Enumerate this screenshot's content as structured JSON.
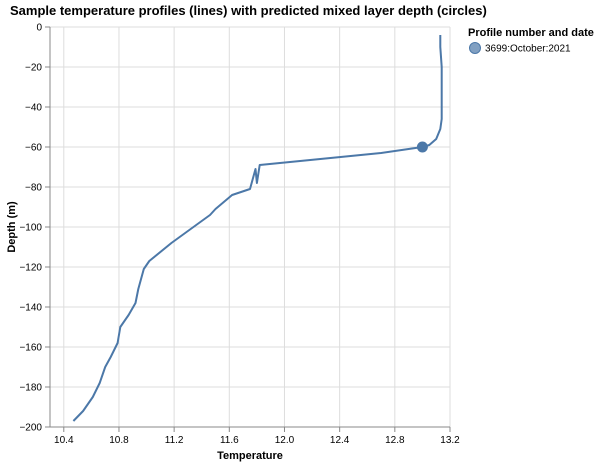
{
  "chart_data": {
    "type": "line",
    "title": "Sample temperature profiles (lines) with predicted mixed layer depth (circles)",
    "xlabel": "Temperature",
    "ylabel": "Depth (m)",
    "xlim": [
      10.3,
      13.2
    ],
    "ylim": [
      -200,
      0
    ],
    "x_ticks": [
      10.4,
      10.8,
      11.2,
      11.6,
      12.0,
      12.4,
      12.8,
      13.2
    ],
    "x_tick_labels": [
      "10.4",
      "10.8",
      "11.2",
      "11.6",
      "12.0",
      "12.4",
      "12.8",
      "13.2"
    ],
    "y_ticks": [
      0,
      -20,
      -40,
      -60,
      -80,
      -100,
      -120,
      -140,
      -160,
      -180,
      -200
    ],
    "y_tick_labels": [
      "0",
      "−20",
      "−40",
      "−60",
      "−80",
      "−100",
      "−120",
      "−140",
      "−160",
      "−180",
      "−200"
    ],
    "grid": true,
    "legend": {
      "title": "Profile number and date",
      "placement": "top-right",
      "entries": [
        {
          "label": "3699:October:2021",
          "color": "#4c78a8"
        }
      ]
    },
    "series": [
      {
        "name": "3699:October:2021",
        "color": "#4c78a8",
        "points": [
          {
            "x": 13.13,
            "y": -4
          },
          {
            "x": 13.13,
            "y": -10
          },
          {
            "x": 13.14,
            "y": -20
          },
          {
            "x": 13.14,
            "y": -30
          },
          {
            "x": 13.14,
            "y": -40
          },
          {
            "x": 13.14,
            "y": -46
          },
          {
            "x": 13.13,
            "y": -51
          },
          {
            "x": 13.1,
            "y": -56
          },
          {
            "x": 13.05,
            "y": -59
          },
          {
            "x": 13.0,
            "y": -60
          },
          {
            "x": 12.7,
            "y": -63
          },
          {
            "x": 11.82,
            "y": -69
          },
          {
            "x": 11.8,
            "y": -78
          },
          {
            "x": 11.79,
            "y": -71
          },
          {
            "x": 11.75,
            "y": -81
          },
          {
            "x": 11.62,
            "y": -84
          },
          {
            "x": 11.5,
            "y": -91
          },
          {
            "x": 11.46,
            "y": -94
          },
          {
            "x": 11.36,
            "y": -99
          },
          {
            "x": 11.18,
            "y": -108
          },
          {
            "x": 11.02,
            "y": -117
          },
          {
            "x": 10.98,
            "y": -121
          },
          {
            "x": 10.94,
            "y": -131
          },
          {
            "x": 10.92,
            "y": -138
          },
          {
            "x": 10.87,
            "y": -144
          },
          {
            "x": 10.81,
            "y": -150
          },
          {
            "x": 10.79,
            "y": -158
          },
          {
            "x": 10.74,
            "y": -165
          },
          {
            "x": 10.7,
            "y": -170
          },
          {
            "x": 10.66,
            "y": -178
          },
          {
            "x": 10.61,
            "y": -185
          },
          {
            "x": 10.54,
            "y": -192
          },
          {
            "x": 10.47,
            "y": -197
          }
        ]
      }
    ],
    "mixed_layer_points": [
      {
        "name": "3699:October:2021",
        "x": 13.0,
        "y": -60,
        "color": "#4c78a8"
      }
    ]
  }
}
